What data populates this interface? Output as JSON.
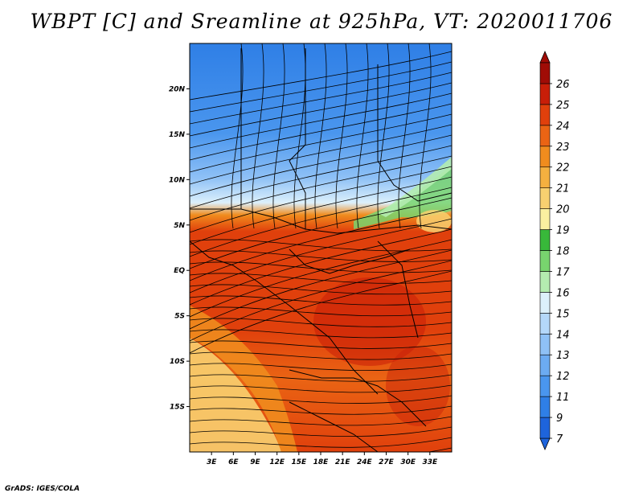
{
  "title": "WBPT [C] and Sreamline at 925hPa, VT: 2020011706",
  "footer": "GrADS: IGES/COLA",
  "map": {
    "lon_range": [
      0,
      36
    ],
    "lat_range": [
      -20,
      25
    ],
    "x_ticks": [
      "3E",
      "6E",
      "9E",
      "12E",
      "15E",
      "18E",
      "21E",
      "24E",
      "27E",
      "30E",
      "33E"
    ],
    "y_ticks": [
      "20N",
      "15N",
      "10N",
      "5N",
      "EQ",
      "5S",
      "10S",
      "15S"
    ]
  },
  "colorbar": {
    "labels": [
      "7",
      "9",
      "11",
      "12",
      "13",
      "14",
      "15",
      "16",
      "17",
      "18",
      "19",
      "20",
      "21",
      "22",
      "23",
      "24",
      "25",
      "26"
    ],
    "colors": [
      "#1e64dc",
      "#2f7fe6",
      "#4a96ee",
      "#6cabf2",
      "#8fc1f6",
      "#b4d8fa",
      "#dcf0fb",
      "#b4ecb0",
      "#78d46e",
      "#38b83a",
      "#fbf0a0",
      "#f8d070",
      "#f4b040",
      "#f08c1e",
      "#ea6414",
      "#e0400c",
      "#c81e08",
      "#a00c06"
    ]
  }
}
